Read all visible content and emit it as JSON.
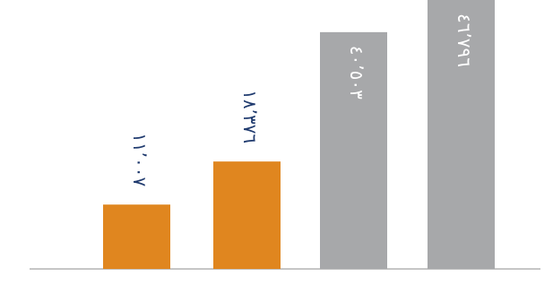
{
  "chart_data": {
    "type": "bar",
    "values": [
      11007,
      18376,
      40503,
      46796
    ],
    "value_labels": [
      "١١٬٠٠٧",
      "١٨٬٣٧٦",
      "٤٠٬٥٠٣",
      "٤٦٬٧٩٦"
    ],
    "colors": [
      "#e0861f",
      "#e0861f",
      "#a7a8aa",
      "#a7a8aa"
    ],
    "label_colors": [
      "#1f3a6e",
      "#1f3a6e",
      "#ffffff",
      "#ffffff"
    ],
    "ylim": [
      0,
      46000
    ]
  }
}
